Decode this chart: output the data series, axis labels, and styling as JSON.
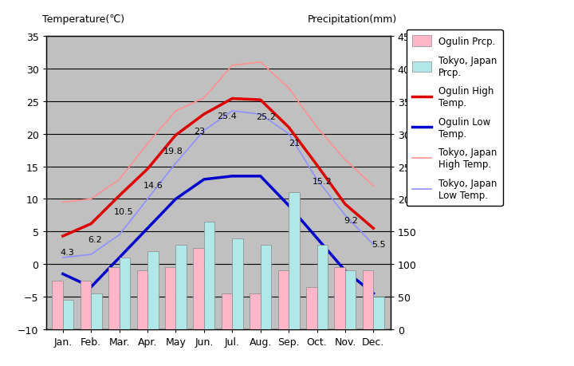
{
  "months": [
    "Jan.",
    "Feb.",
    "Mar.",
    "Apr.",
    "May",
    "Jun.",
    "Jul.",
    "Aug.",
    "Sep.",
    "Oct.",
    "Nov.",
    "Dec."
  ],
  "ogulin_prcp": [
    75,
    75,
    95,
    90,
    95,
    125,
    55,
    55,
    90,
    65,
    95,
    90
  ],
  "tokyo_prcp": [
    45,
    55,
    110,
    120,
    130,
    165,
    140,
    130,
    210,
    130,
    90,
    50
  ],
  "ogulin_high": [
    4.3,
    6.2,
    10.5,
    14.6,
    19.8,
    23.0,
    25.4,
    25.2,
    21.0,
    15.2,
    9.2,
    5.5
  ],
  "ogulin_low": [
    -1.5,
    -3.5,
    1.0,
    5.5,
    10.0,
    13.0,
    13.5,
    13.5,
    9.0,
    4.0,
    -1.0,
    -4.5
  ],
  "tokyo_high": [
    9.5,
    10.0,
    13.0,
    18.5,
    23.5,
    25.5,
    30.5,
    31.0,
    27.0,
    21.0,
    16.0,
    12.0
  ],
  "tokyo_low": [
    1.0,
    1.5,
    4.5,
    10.0,
    15.5,
    20.5,
    23.5,
    23.0,
    20.0,
    13.0,
    7.5,
    3.0
  ],
  "temp_ylim": [
    -10,
    35
  ],
  "prcp_ylim": [
    0,
    450
  ],
  "temp_yticks": [
    -10,
    -5,
    0,
    5,
    10,
    15,
    20,
    25,
    30,
    35
  ],
  "prcp_yticks": [
    0,
    50,
    100,
    150,
    200,
    250,
    300,
    350,
    400,
    450
  ],
  "ogulin_prcp_color": "#FFB6C8",
  "tokyo_prcp_color": "#B0E8E8",
  "ogulin_high_color": "#DD0000",
  "ogulin_low_color": "#0000CC",
  "tokyo_high_color": "#FF9090",
  "tokyo_low_color": "#9090FF",
  "bg_color": "#C0C0C0",
  "grid_color": "#000000",
  "title_left": "Temperature(℃)",
  "title_right": "Precipitation(mm)",
  "legend_labels": [
    "Ogulin Prcp.",
    "Tokyo, Japan\nPrcp.",
    "Ogulin High\nTemp.",
    "Ogulin Low\nTemp.",
    "Tokyo, Japan\nHigh Temp.",
    "Tokyo, Japan\nLow Temp."
  ],
  "label_show_indices": [
    0,
    1,
    2,
    3,
    4,
    5,
    6,
    7,
    8,
    9,
    10,
    11
  ],
  "label_values": [
    "4.3",
    "6.2",
    "10.5",
    "14.6",
    "19.8",
    "23",
    "25.4",
    "25.2",
    "21",
    "15.2",
    "9.2",
    "5.5"
  ]
}
